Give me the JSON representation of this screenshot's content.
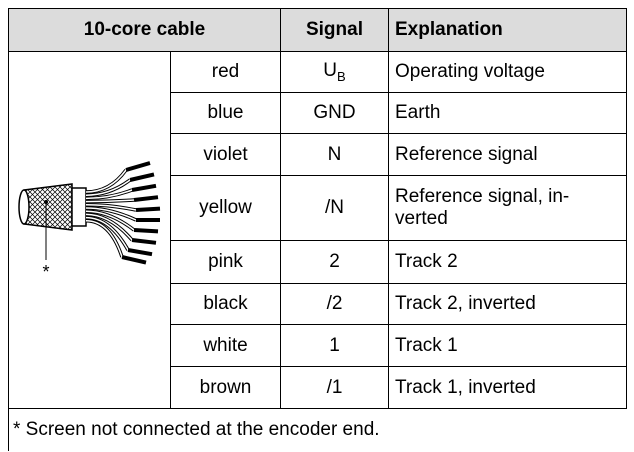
{
  "table": {
    "header": [
      "10-core cable",
      "Signal",
      "Explanation"
    ],
    "image_label": "*",
    "rows": [
      {
        "color": "red",
        "signal": "U",
        "signal_sub": "B",
        "explanation": "Operating voltage"
      },
      {
        "color": "blue",
        "signal": "GND",
        "explanation": "Earth"
      },
      {
        "color": "violet",
        "signal": "N",
        "explanation": "Reference signal"
      },
      {
        "color": "yellow",
        "signal": "/N",
        "explanation": "Reference signal, in-verted"
      },
      {
        "color": "pink",
        "signal": "2",
        "explanation": "Track 2"
      },
      {
        "color": "black",
        "signal": "/2",
        "explanation": "Track 2, inverted"
      },
      {
        "color": "white",
        "signal": "1",
        "explanation": "Track 1"
      },
      {
        "color": "brown",
        "signal": "/1",
        "explanation": "Track 1, inverted"
      }
    ],
    "footnote": "* Screen not connected at the encoder end."
  }
}
